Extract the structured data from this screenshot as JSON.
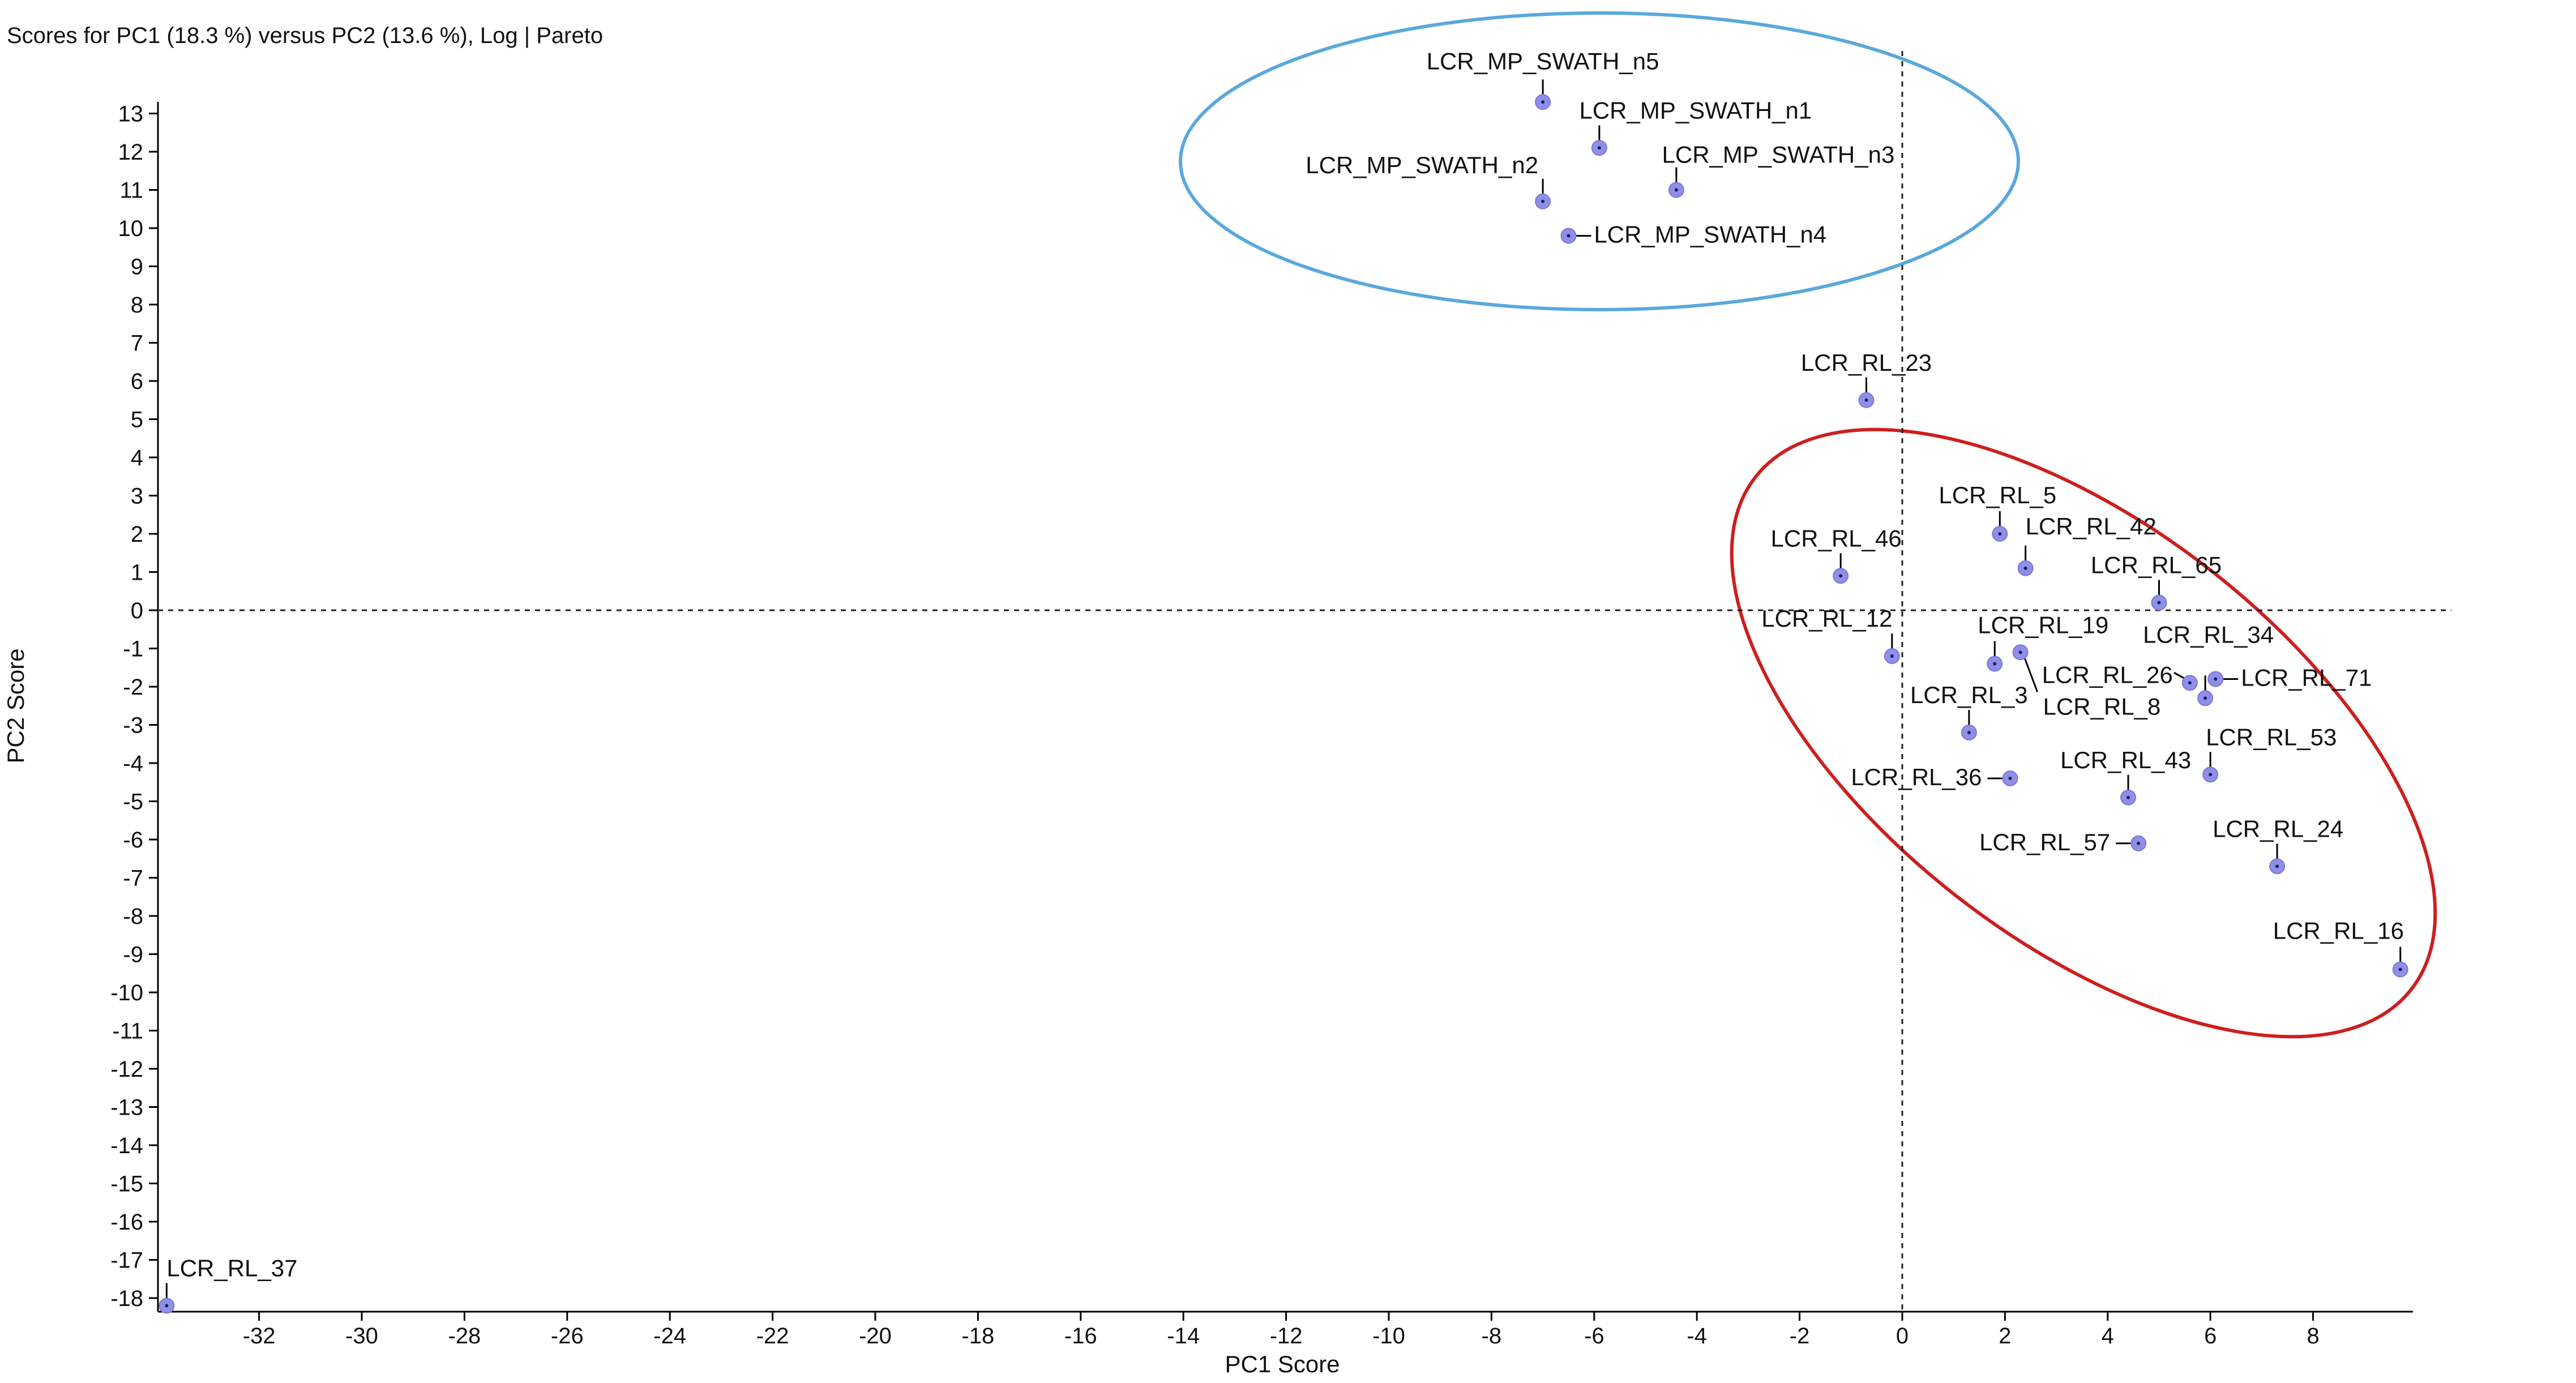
{
  "chart_data": {
    "type": "scatter",
    "title": "Scores for PC1 (18.3 %) versus PC2 (13.6 %), Log | Pareto",
    "xlabel": "PC1 Score",
    "ylabel": "PC2 Score",
    "xlim": [
      -34,
      10
    ],
    "ylim": [
      -18,
      13
    ],
    "xticks": [
      -32,
      -30,
      -28,
      -26,
      -24,
      -22,
      -20,
      -18,
      -16,
      -14,
      -12,
      -10,
      -8,
      -6,
      -4,
      -2,
      0,
      2,
      4,
      6,
      8
    ],
    "yticks": [
      13,
      12,
      11,
      10,
      9,
      8,
      7,
      6,
      5,
      4,
      3,
      2,
      1,
      0,
      -1,
      -2,
      -3,
      -4,
      -5,
      -6,
      -7,
      -8,
      -9,
      -10,
      -11,
      -12,
      -13,
      -14,
      -15,
      -16,
      -17,
      -18
    ],
    "grid": false,
    "reference_lines": {
      "x": 0,
      "y": 0,
      "style": "dashed"
    },
    "point_color": "#8f8fe8",
    "points": [
      {
        "label": "LCR_MP_SWATH_n5",
        "x": -7.0,
        "y": 13.3
      },
      {
        "label": "LCR_MP_SWATH_n1",
        "x": -5.9,
        "y": 12.1
      },
      {
        "label": "LCR_MP_SWATH_n3",
        "x": -4.4,
        "y": 11.0
      },
      {
        "label": "LCR_MP_SWATH_n2",
        "x": -7.0,
        "y": 10.7
      },
      {
        "label": "LCR_MP_SWATH_n4",
        "x": -6.5,
        "y": 9.8
      },
      {
        "label": "LCR_RL_23",
        "x": -0.7,
        "y": 5.5
      },
      {
        "label": "LCR_RL_5",
        "x": 1.9,
        "y": 2.0
      },
      {
        "label": "LCR_RL_42",
        "x": 2.4,
        "y": 1.1
      },
      {
        "label": "LCR_RL_46",
        "x": -1.2,
        "y": 0.9
      },
      {
        "label": "LCR_RL_65",
        "x": 5.0,
        "y": 0.2
      },
      {
        "label": "LCR_RL_12",
        "x": -0.2,
        "y": -1.2
      },
      {
        "label": "LCR_RL_19",
        "x": 1.8,
        "y": -1.4
      },
      {
        "label": "LCR_RL_8",
        "x": 2.3,
        "y": -1.1
      },
      {
        "label": "LCR_RL_34",
        "x": 5.9,
        "y": -2.3
      },
      {
        "label": "LCR_RL_26",
        "x": 5.6,
        "y": -1.9
      },
      {
        "label": "LCR_RL_71",
        "x": 6.1,
        "y": -1.8
      },
      {
        "label": "LCR_RL_3",
        "x": 1.3,
        "y": -3.2
      },
      {
        "label": "LCR_RL_53",
        "x": 6.0,
        "y": -4.3
      },
      {
        "label": "LCR_RL_36",
        "x": 2.1,
        "y": -4.4
      },
      {
        "label": "LCR_RL_43",
        "x": 4.4,
        "y": -4.9
      },
      {
        "label": "LCR_RL_57",
        "x": 4.6,
        "y": -6.1
      },
      {
        "label": "LCR_RL_24",
        "x": 7.3,
        "y": -6.7
      },
      {
        "label": "LCR_RL_16",
        "x": 9.7,
        "y": -9.4
      },
      {
        "label": "LCR_RL_37",
        "x": -33.8,
        "y": -18.2
      }
    ],
    "annotations": [
      {
        "shape": "ellipse",
        "color": "#5aa8dc",
        "encloses": [
          "LCR_MP_SWATH_n1",
          "LCR_MP_SWATH_n2",
          "LCR_MP_SWATH_n3",
          "LCR_MP_SWATH_n4",
          "LCR_MP_SWATH_n5"
        ]
      },
      {
        "shape": "ellipse",
        "color": "#cc1f1f",
        "encloses": [
          "LCR_RL_23",
          "LCR_RL_5",
          "LCR_RL_42",
          "LCR_RL_46",
          "LCR_RL_65",
          "LCR_RL_12",
          "LCR_RL_19",
          "LCR_RL_8",
          "LCR_RL_34",
          "LCR_RL_26",
          "LCR_RL_71",
          "LCR_RL_3",
          "LCR_RL_53",
          "LCR_RL_36",
          "LCR_RL_43",
          "LCR_RL_57",
          "LCR_RL_24",
          "LCR_RL_16"
        ]
      }
    ]
  }
}
